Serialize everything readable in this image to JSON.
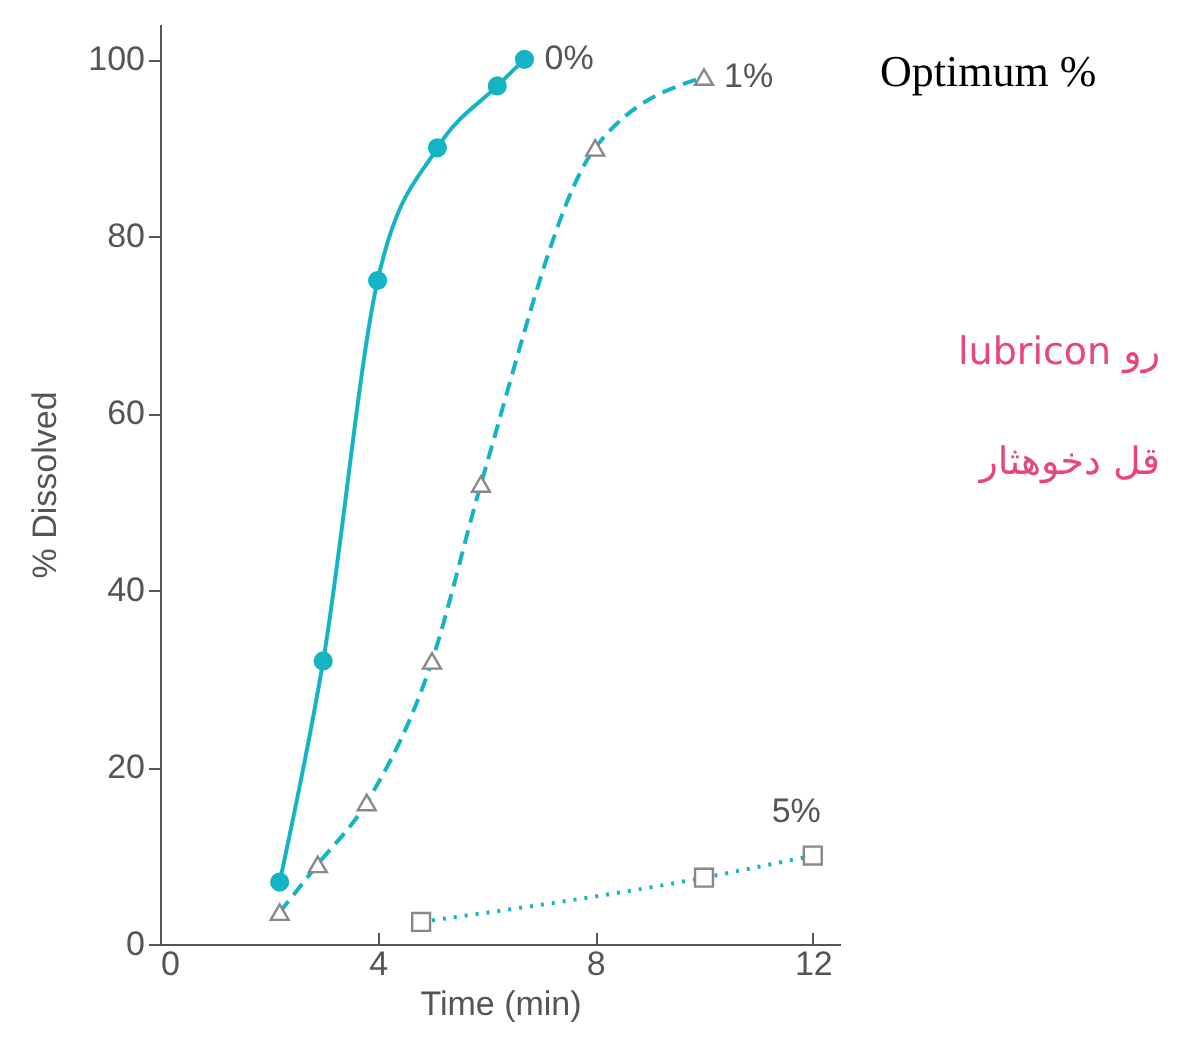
{
  "chart_data": {
    "type": "line",
    "xlabel": "Time (min)",
    "ylabel": "% Dissolved",
    "xlim": [
      0,
      12.5
    ],
    "ylim": [
      0,
      104
    ],
    "xticks": [
      0,
      4,
      8,
      12
    ],
    "yticks": [
      0,
      20,
      40,
      60,
      80,
      100
    ],
    "grid": false,
    "annotations": [
      "Optimum %",
      "lubricon رو",
      "قل دخوهثار"
    ],
    "series": [
      {
        "name": "0%",
        "color": "#14b4c4",
        "marker": "circle",
        "line_style": "solid",
        "x": [
          2.2,
          3,
          4,
          5.1,
          6.2,
          6.7
        ],
        "values": [
          7,
          32,
          75,
          90,
          97,
          100
        ]
      },
      {
        "name": "1%",
        "color": "#14b4c4",
        "marker": "triangle",
        "line_style": "dashed",
        "x": [
          2.2,
          2.9,
          3.8,
          5,
          5.9,
          8,
          10
        ],
        "values": [
          3.6,
          9,
          16,
          32,
          52,
          90,
          98
        ]
      },
      {
        "name": "5%",
        "color": "#14b4c4",
        "marker": "square",
        "line_style": "dotted",
        "x": [
          4.8,
          10,
          12
        ],
        "values": [
          2.5,
          7.5,
          10
        ]
      }
    ]
  }
}
